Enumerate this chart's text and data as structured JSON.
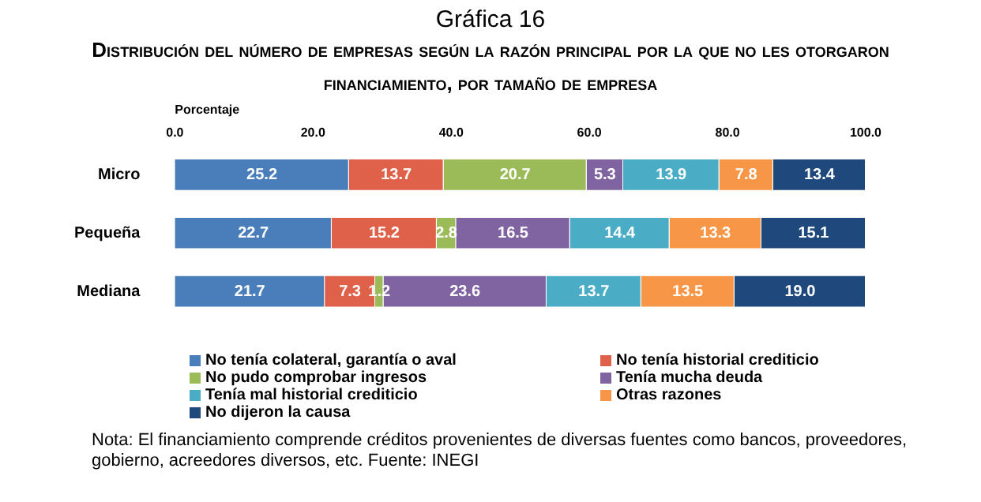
{
  "chart_data": {
    "type": "bar",
    "orientation": "horizontal",
    "stacked": true,
    "title": "Gráfica 16",
    "subtitle": "Distribución del número de empresas según la razón principal  por la que no les otorgaron financiamiento,  por tamaño de empresa",
    "xlabel": "Porcentaje",
    "categories": [
      "Micro",
      "Pequeña",
      "Mediana"
    ],
    "series": [
      {
        "name": "No tenía colateral, garantía o aval",
        "color": "#4a7ebb",
        "values": [
          25.2,
          22.7,
          21.7
        ],
        "value_labels": [
          "25.2",
          "22.7",
          "21.7"
        ]
      },
      {
        "name": "No tenía historial crediticio",
        "color": "#e0614a",
        "values": [
          13.7,
          15.2,
          7.3
        ],
        "value_labels": [
          "13.7",
          "15.2",
          "7.3"
        ]
      },
      {
        "name": "No pudo comprobar ingresos",
        "color": "#9bbb59",
        "values": [
          20.7,
          2.8,
          1.2
        ],
        "value_labels": [
          "20.7",
          "2.8",
          "1.2"
        ]
      },
      {
        "name": "Tenía mucha deuda",
        "color": "#8064a2",
        "values": [
          5.3,
          16.5,
          23.6
        ],
        "value_labels": [
          "5.3",
          "16.5",
          "23.6"
        ]
      },
      {
        "name": "Tenía mal historial crediticio",
        "color": "#4bacc6",
        "values": [
          13.9,
          14.4,
          13.7
        ],
        "value_labels": [
          "13.9",
          "14.4",
          "13.7"
        ]
      },
      {
        "name": "Otras razones",
        "color": "#f79646",
        "values": [
          7.8,
          13.3,
          13.5
        ],
        "value_labels": [
          "7.8",
          "13.3",
          "13.5"
        ]
      },
      {
        "name": "No dijeron la causa",
        "color": "#1f497d",
        "values": [
          13.4,
          15.1,
          19.0
        ],
        "value_labels": [
          "13.4",
          "15.1",
          "19.0"
        ]
      }
    ],
    "xlim": [
      0,
      100
    ],
    "xticks": [
      {
        "value": 0,
        "label": "0.0"
      },
      {
        "value": 20,
        "label": "20.0"
      },
      {
        "value": 40,
        "label": "40.0"
      },
      {
        "value": 60,
        "label": "60.0"
      },
      {
        "value": 80,
        "label": "80.0"
      },
      {
        "value": 100,
        "label": "100.0"
      }
    ],
    "grid": false,
    "legend": "bottom",
    "annotations": [
      "Nota: El financiamiento comprende créditos provenientes de diversas fuentes como bancos, proveedores, gobierno, acreedores diversos, etc. Fuente: INEGI"
    ]
  }
}
